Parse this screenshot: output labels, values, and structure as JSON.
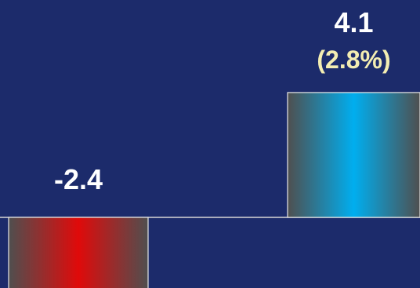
{
  "chart_data": {
    "type": "bar",
    "categories": [
      "",
      ""
    ],
    "values": [
      -2.4,
      4.1
    ],
    "data_labels": [
      "-2.4",
      "4.1"
    ],
    "secondary_labels": [
      "",
      "(2.8%)"
    ],
    "colors": {
      "background": "#1c2b6b",
      "negative_center": "#e00a0a",
      "negative_edge": "#4f4f4f",
      "positive_center": "#00aeef",
      "positive_edge": "#4f4f4f",
      "baseline": "#d8d8d8",
      "label": "#ffffff",
      "sub_label": "#f3edb2"
    },
    "grid": false,
    "legend": "none"
  }
}
